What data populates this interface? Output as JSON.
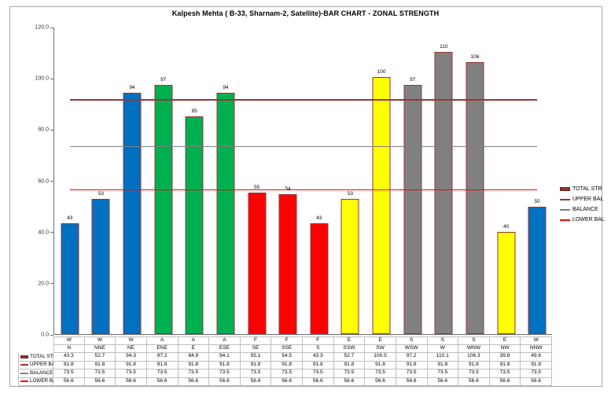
{
  "chart_data": {
    "type": "bar",
    "title": "Kalpesh Mehta ( B-33, Sharnam-2, Satellite)-BAR CHART - ZONAL STRENGTH",
    "xlabel": "",
    "ylabel": "",
    "ylim": [
      0,
      120
    ],
    "ytick_step": 20,
    "ytick_labels": [
      "0.0",
      "20.0",
      "40.0",
      "60.0",
      "80.0",
      "100.0",
      "120.0"
    ],
    "grid": false,
    "legend_position": "right",
    "categories": [
      "N",
      "NNE",
      "NE",
      "ENE",
      "E",
      "ESE",
      "SE",
      "SSE",
      "S",
      "SSW",
      "SW",
      "WSW",
      "W",
      "WNW",
      "NW",
      "NNW"
    ],
    "zone_letters": [
      "W",
      "W",
      "W",
      "A",
      "A",
      "A",
      "F",
      "F",
      "F",
      "E",
      "E",
      "S",
      "S",
      "S",
      "E",
      "W"
    ],
    "bars": {
      "name": "TOTAL STR",
      "values": [
        43.3,
        52.7,
        94.3,
        97.2,
        84.9,
        94.1,
        55.1,
        54.5,
        43.3,
        52.7,
        100.5,
        97.2,
        110.1,
        106.3,
        39.8,
        49.6
      ],
      "point_labels": [
        "43",
        "53",
        "94",
        "97",
        "85",
        "94",
        "55",
        "54",
        "43",
        "53",
        "100",
        "97",
        "110",
        "106",
        "40",
        "50"
      ]
    },
    "zone_colors": {
      "W": "#0070C0",
      "A": "#00B050",
      "F": "#FF0000",
      "E": "#FFFF00",
      "S": "#808080"
    },
    "bar_border_color": "#963634",
    "ref_lines": [
      {
        "name": "UPPER BAL",
        "value": 91.8,
        "color": "#953735",
        "thickness": 2
      },
      {
        "name": "BALANCE",
        "value": 73.5,
        "color": "#808080",
        "thickness": 1.5
      },
      {
        "name": "LOWER BAL",
        "value": 56.6,
        "color": "#FF0000",
        "thickness": 1.5
      }
    ],
    "data_table": {
      "rows": [
        {
          "name": "TOTAL STR",
          "icon": "bar-swatch",
          "color": "#963634",
          "values": [
            "43.3",
            "52.7",
            "94.3",
            "97.2",
            "84.9",
            "94.1",
            "55.1",
            "54.5",
            "43.3",
            "52.7",
            "100.5",
            "97.2",
            "110.1",
            "106.3",
            "39.8",
            "49.6"
          ]
        },
        {
          "name": "UPPER BAL",
          "icon": "line",
          "color": "#953735",
          "values": [
            "91.8",
            "91.8",
            "91.8",
            "91.8",
            "91.8",
            "91.8",
            "91.8",
            "91.8",
            "91.8",
            "91.8",
            "91.8",
            "91.8",
            "91.8",
            "91.8",
            "91.8",
            "91.8"
          ]
        },
        {
          "name": "BALANCE",
          "icon": "line",
          "color": "#808080",
          "values": [
            "73.5",
            "73.5",
            "73.5",
            "73.5",
            "73.5",
            "73.5",
            "73.5",
            "73.5",
            "73.5",
            "73.5",
            "73.5",
            "73.5",
            "73.5",
            "73.5",
            "73.5",
            "73.5"
          ]
        },
        {
          "name": "LOWER BAL",
          "icon": "line",
          "color": "#FF0000",
          "values": [
            "56.6",
            "56.6",
            "56.6",
            "56.6",
            "56.6",
            "56.6",
            "56.6",
            "56.6",
            "56.6",
            "56.6",
            "56.6",
            "56.6",
            "56.6",
            "56.6",
            "56.6",
            "56.6"
          ]
        }
      ]
    }
  },
  "legend": {
    "items": [
      {
        "label": "TOTAL STR",
        "type": "swatch",
        "color": "#963634"
      },
      {
        "label": "UPPER BAL",
        "type": "line",
        "color": "#953735"
      },
      {
        "label": "BALANCE",
        "type": "line",
        "color": "#808080"
      },
      {
        "label": "LOWER BAL",
        "type": "line",
        "color": "#FF0000"
      }
    ]
  }
}
